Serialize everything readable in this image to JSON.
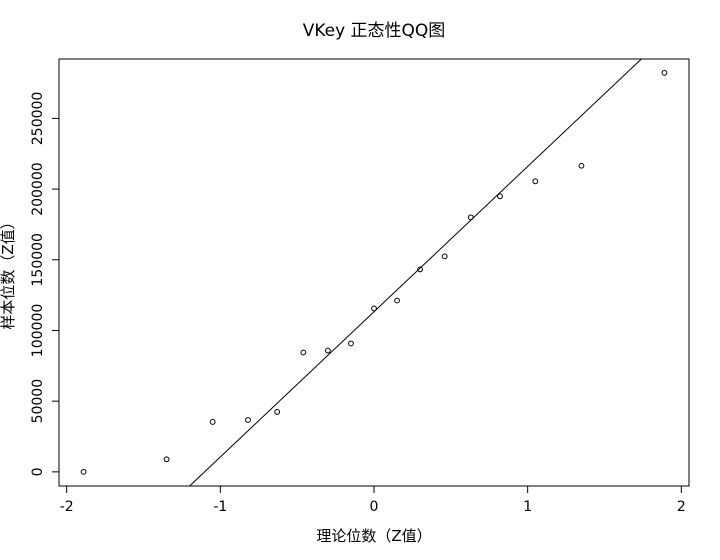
{
  "chart_data": {
    "type": "scatter",
    "title": "VKey 正态性QQ图",
    "xlabel": "理论位数（Z值）",
    "ylabel": "样本位数（Z值）",
    "xlim": [
      -2.05,
      2.05
    ],
    "ylim": [
      -10000,
      292000
    ],
    "xticks": [
      -2,
      -1,
      0,
      1,
      2
    ],
    "yticks": [
      0,
      50000,
      100000,
      150000,
      200000,
      250000
    ],
    "xtick_labels": [
      "-2",
      "-1",
      "0",
      "1",
      "2"
    ],
    "ytick_labels": [
      "0",
      "50000",
      "100000",
      "150000",
      "200000",
      "250000"
    ],
    "grid": false,
    "points": [
      {
        "x": -1.89,
        "y": 0
      },
      {
        "x": -1.35,
        "y": 8900
      },
      {
        "x": -1.05,
        "y": 35300
      },
      {
        "x": -0.82,
        "y": 36700
      },
      {
        "x": -0.63,
        "y": 42400
      },
      {
        "x": -0.46,
        "y": 84400
      },
      {
        "x": -0.3,
        "y": 85800
      },
      {
        "x": -0.15,
        "y": 90800
      },
      {
        "x": 0.0,
        "y": 115600
      },
      {
        "x": 0.15,
        "y": 121200
      },
      {
        "x": 0.3,
        "y": 143200
      },
      {
        "x": 0.46,
        "y": 152400
      },
      {
        "x": 0.63,
        "y": 180000
      },
      {
        "x": 0.82,
        "y": 194900
      },
      {
        "x": 1.05,
        "y": 205500
      },
      {
        "x": 1.35,
        "y": 216500
      },
      {
        "x": 1.89,
        "y": 282200
      }
    ],
    "reference_line": {
      "x1": -1.2,
      "y1": -10000,
      "x2": 1.74,
      "y2": 292000
    }
  }
}
